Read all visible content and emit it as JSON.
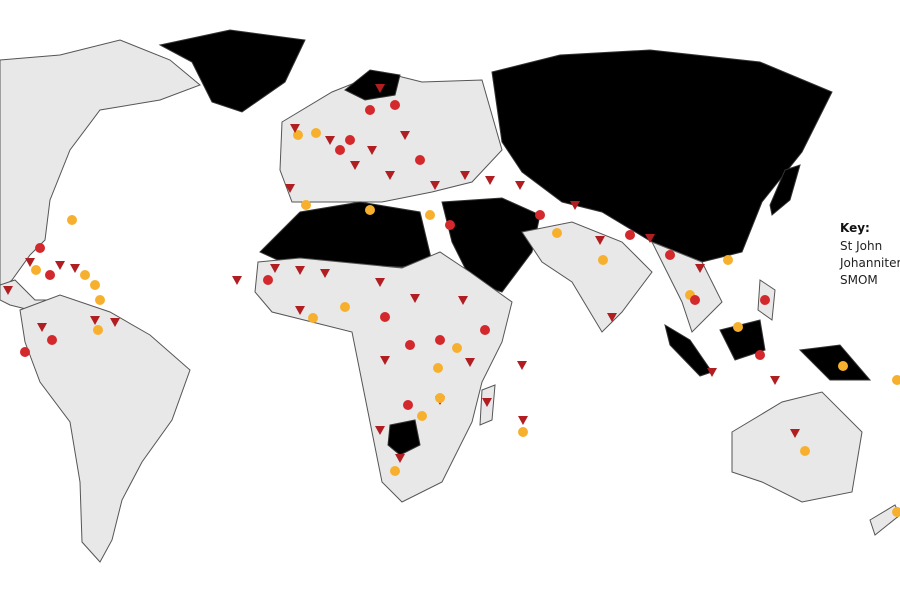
{
  "legend": {
    "title": "Key:",
    "items": [
      "St John",
      "Johanniter",
      "SMOM"
    ]
  }
}
